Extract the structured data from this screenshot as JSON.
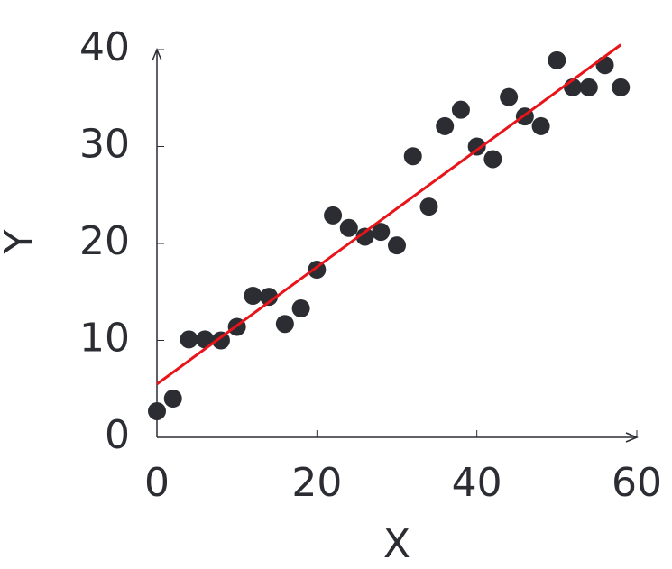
{
  "chart_data": {
    "type": "scatter",
    "x_label": "X",
    "y_label": "Y",
    "x": [
      0,
      2,
      4,
      6,
      8,
      10,
      12,
      14,
      16,
      18,
      20,
      22,
      24,
      26,
      28,
      30,
      32,
      34,
      36,
      38,
      40,
      42,
      44,
      46,
      48,
      50,
      52,
      54,
      56,
      58
    ],
    "values": [
      2.7,
      4.0,
      10.1,
      10.1,
      10.0,
      11.4,
      14.6,
      14.5,
      11.7,
      13.3,
      17.3,
      22.9,
      21.6,
      20.7,
      21.2,
      19.8,
      29.0,
      23.8,
      32.1,
      33.8,
      30.0,
      28.7,
      35.1,
      33.1,
      32.1,
      38.9,
      36.1,
      36.1,
      38.4,
      36.1
    ],
    "color": "#2b2d33",
    "fit_line": {
      "x": [
        0,
        58
      ],
      "values": [
        5.5,
        40.5
      ],
      "color": "#e8141a"
    },
    "xlim": [
      0,
      60
    ],
    "ylim": [
      0,
      40
    ],
    "xticks": [
      0,
      20,
      40,
      60
    ],
    "yticks": [
      0,
      10,
      20,
      30,
      40
    ]
  }
}
